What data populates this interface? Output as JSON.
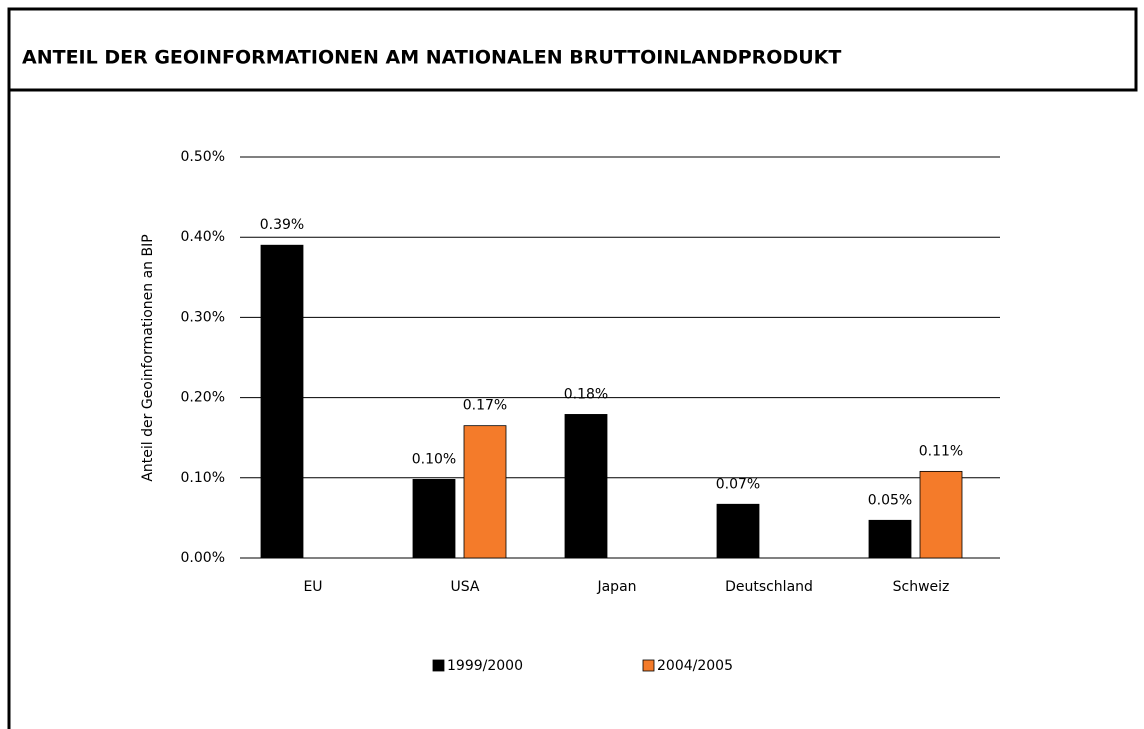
{
  "chart_data": {
    "type": "bar",
    "title": "ANTEIL DER GEOINFORMATIONEN AM NATIONALEN BRUTTOINLANDPRODUKT",
    "y_label": "Anteil der Geoinformationen an BIP",
    "categories": [
      "EU",
      "USA",
      "Japan",
      "Deutschland",
      "Schweiz"
    ],
    "series": [
      {
        "name": "1999/2000",
        "color": "#000000",
        "values": [
          0.39,
          0.098,
          0.179,
          0.067,
          0.047
        ],
        "value_labels": [
          "0.39%",
          "0.10%",
          "0.18%",
          "0.07%",
          "0.05%"
        ]
      },
      {
        "name": "2004/2005",
        "color": "#f47b2a",
        "values": [
          null,
          0.165,
          null,
          null,
          0.108
        ],
        "value_labels": [
          null,
          "0.17%",
          null,
          null,
          "0.11%"
        ]
      }
    ],
    "ylim": [
      0,
      0.5
    ],
    "yticks": [
      {
        "value": 0,
        "label": "0.00%"
      },
      {
        "value": 0.1,
        "label": "0.10%"
      },
      {
        "value": 0.2,
        "label": "0.20%"
      },
      {
        "value": 0.3,
        "label": "0.30%"
      },
      {
        "value": 0.4,
        "label": "0.40%"
      },
      {
        "value": 0.5,
        "label": "0.50%"
      }
    ],
    "grid": true,
    "legend": "bottom"
  }
}
